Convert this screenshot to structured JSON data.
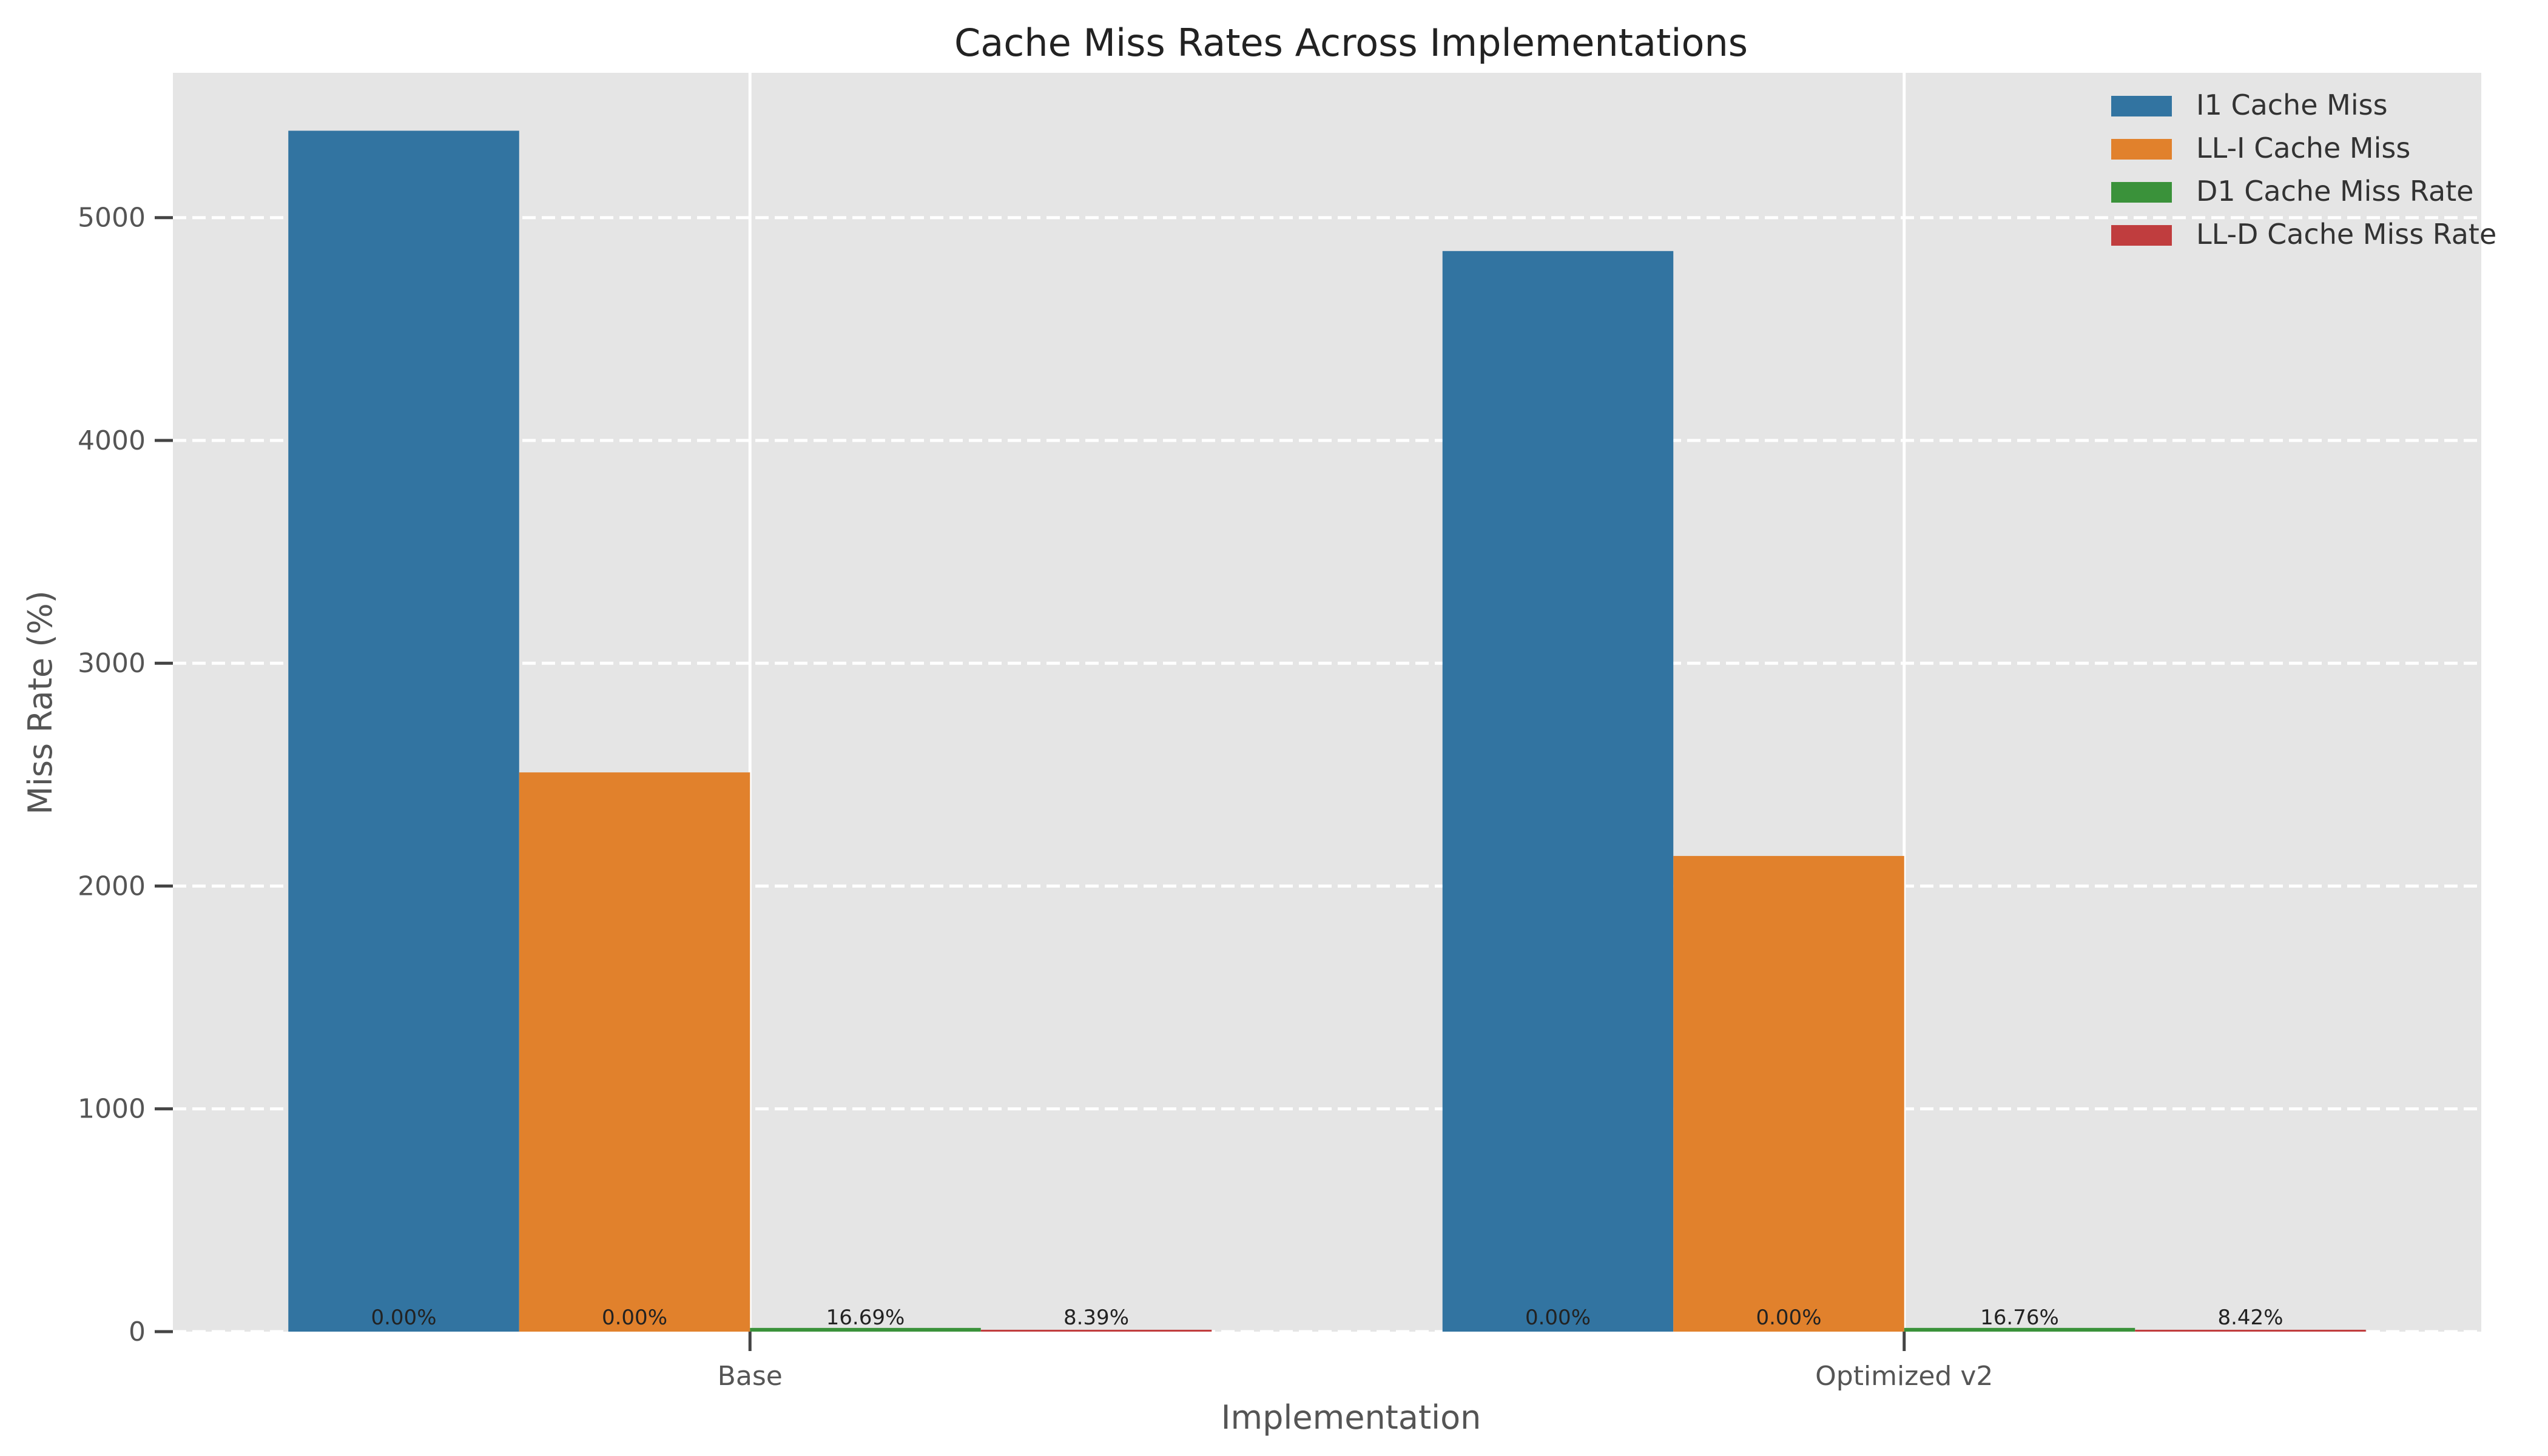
{
  "chart_data": {
    "type": "bar",
    "title": "Cache Miss Rates Across Implementations",
    "xlabel": "Implementation",
    "ylabel": "Miss Rate (%)",
    "categories": [
      "Base",
      "Optimized v2"
    ],
    "ylim": [
      0,
      5650
    ],
    "yticks": [
      0,
      1000,
      2000,
      3000,
      4000,
      5000
    ],
    "grid": "horizontal dashed",
    "legend_position": "top-right",
    "series": [
      {
        "name": "I1 Cache Miss",
        "color": "#3274a1",
        "values": [
          5390,
          4850
        ],
        "labels": [
          "0.00%",
          "0.00%"
        ]
      },
      {
        "name": "LL-I Cache Miss",
        "color": "#e1812c",
        "values": [
          2510,
          2135
        ],
        "labels": [
          "0.00%",
          "0.00%"
        ]
      },
      {
        "name": "D1 Cache Miss Rate",
        "color": "#3a923a",
        "values": [
          16.69,
          16.76
        ],
        "labels": [
          "16.69%",
          "16.76%"
        ]
      },
      {
        "name": "LL-D Cache Miss Rate",
        "color": "#c03d3e",
        "values": [
          8.39,
          8.42
        ],
        "labels": [
          "8.39%",
          "8.42%"
        ]
      }
    ]
  }
}
